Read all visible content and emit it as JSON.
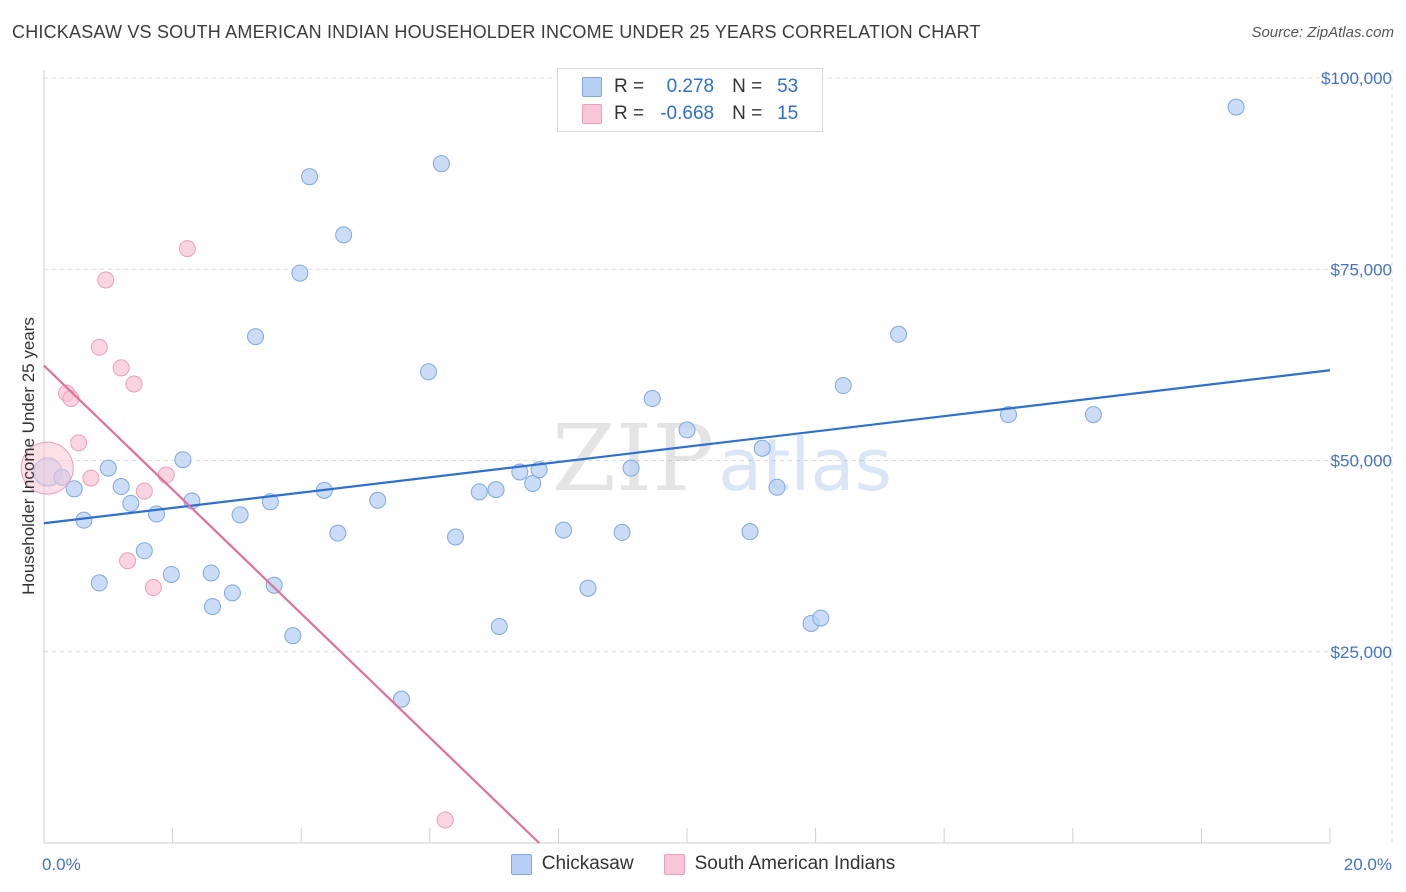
{
  "header": {
    "title": "CHICKASAW VS SOUTH AMERICAN INDIAN HOUSEHOLDER INCOME UNDER 25 YEARS CORRELATION CHART",
    "source": "Source: ZipAtlas.com"
  },
  "watermark": {
    "zip": "ZIP",
    "atlas": "atlas"
  },
  "legend": {
    "r_label": "R =",
    "n_label": "N =",
    "rows": [
      {
        "r": "0.278",
        "n": "53"
      },
      {
        "r": "-0.668",
        "n": "15"
      }
    ]
  },
  "colors": {
    "chickasaw_fill": "#b8d0f3",
    "chickasaw_stroke": "#7fa8e0",
    "chickasaw_line": "#2f6fd0",
    "sai_fill": "#f8c6d6",
    "sai_stroke": "#eb9fb8",
    "sai_line": "#e0709a"
  },
  "chart_data": {
    "type": "scatter",
    "title": "CHICKASAW VS SOUTH AMERICAN INDIAN HOUSEHOLDER INCOME UNDER 25 YEARS CORRELATION CHART",
    "xlabel": "",
    "ylabel": "Householder Income Under 25 years",
    "xlim": [
      0,
      20
    ],
    "ylim": [
      0,
      102000
    ],
    "x_tick_labels": [
      "0.0%",
      "20.0%"
    ],
    "y_ticks": [
      25000,
      50000,
      75000,
      100000
    ],
    "y_tick_labels": [
      "$25,000",
      "$50,000",
      "$75,000",
      "$100,000"
    ],
    "grid": true,
    "series": [
      {
        "name": "Chickasaw",
        "color": "#2f6fd0",
        "points": [
          [
            0.06,
            48500
          ],
          [
            0.28,
            47800
          ],
          [
            0.47,
            46300
          ],
          [
            0.62,
            42200
          ],
          [
            0.86,
            34000
          ],
          [
            1.0,
            49000
          ],
          [
            1.2,
            46600
          ],
          [
            1.35,
            44400
          ],
          [
            1.56,
            38200
          ],
          [
            1.75,
            43000
          ],
          [
            1.98,
            35100
          ],
          [
            2.16,
            50100
          ],
          [
            2.3,
            44700
          ],
          [
            2.6,
            35300
          ],
          [
            2.62,
            30900
          ],
          [
            2.93,
            32700
          ],
          [
            3.05,
            42900
          ],
          [
            3.29,
            66200
          ],
          [
            3.52,
            44600
          ],
          [
            3.58,
            33700
          ],
          [
            3.87,
            27100
          ],
          [
            3.98,
            74500
          ],
          [
            4.13,
            87100
          ],
          [
            4.36,
            46100
          ],
          [
            4.57,
            40500
          ],
          [
            4.66,
            79500
          ],
          [
            5.19,
            44800
          ],
          [
            5.56,
            18800
          ],
          [
            5.98,
            61600
          ],
          [
            6.18,
            88800
          ],
          [
            6.4,
            40000
          ],
          [
            6.77,
            45900
          ],
          [
            7.03,
            46200
          ],
          [
            7.08,
            28300
          ],
          [
            7.4,
            48500
          ],
          [
            7.6,
            47000
          ],
          [
            7.7,
            48800
          ],
          [
            8.08,
            40900
          ],
          [
            8.46,
            33300
          ],
          [
            8.99,
            40600
          ],
          [
            9.13,
            49000
          ],
          [
            9.46,
            58100
          ],
          [
            10.0,
            54000
          ],
          [
            10.98,
            40700
          ],
          [
            11.17,
            51600
          ],
          [
            11.4,
            46500
          ],
          [
            11.93,
            28700
          ],
          [
            12.08,
            29400
          ],
          [
            12.43,
            59800
          ],
          [
            13.29,
            66500
          ],
          [
            15.0,
            56000
          ],
          [
            16.32,
            56000
          ],
          [
            18.54,
            96200
          ]
        ],
        "trend": {
          "x": [
            0,
            20
          ],
          "y": [
            41800,
            61800
          ]
        }
      },
      {
        "name": "South American Indians",
        "color": "#e0709a",
        "points": [
          [
            0.05,
            49000
          ],
          [
            0.35,
            58800
          ],
          [
            0.42,
            58100
          ],
          [
            0.54,
            52300
          ],
          [
            0.73,
            47700
          ],
          [
            0.86,
            64800
          ],
          [
            0.96,
            73600
          ],
          [
            1.2,
            62100
          ],
          [
            1.3,
            36900
          ],
          [
            1.4,
            60000
          ],
          [
            1.56,
            46000
          ],
          [
            1.7,
            33400
          ],
          [
            1.9,
            48100
          ],
          [
            2.23,
            77700
          ],
          [
            6.24,
            3000
          ]
        ],
        "trend": {
          "x": [
            0,
            7.7
          ],
          "y": [
            62400,
            0
          ]
        }
      }
    ]
  }
}
